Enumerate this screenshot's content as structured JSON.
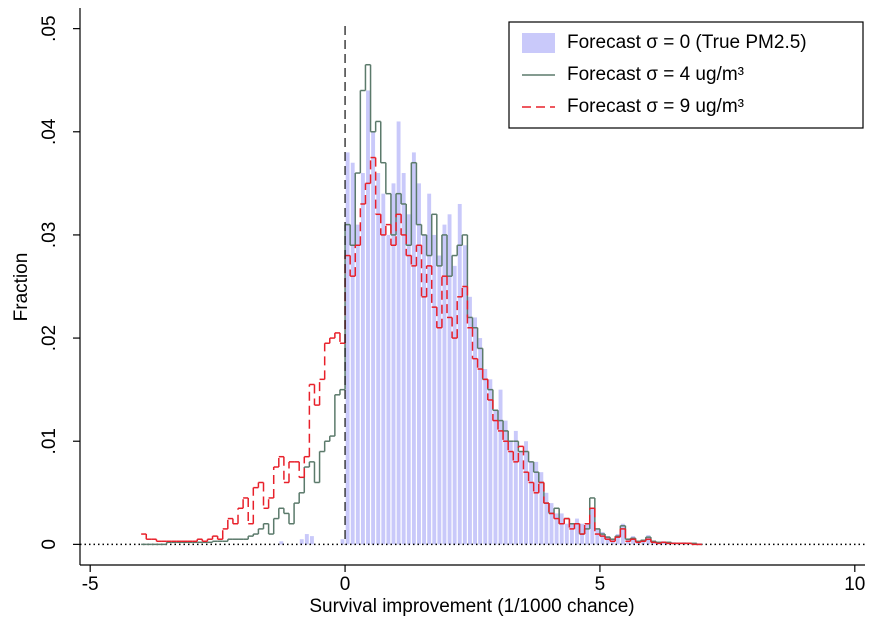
{
  "chart_data": {
    "type": "histogram",
    "x_label": "Survival improvement (1/1000 chance)",
    "y_label": "Fraction",
    "xlim": [
      -5.2,
      10.2
    ],
    "xticks": [
      -5,
      0,
      5,
      10
    ],
    "ylim": [
      -0.002,
      0.052
    ],
    "yticks": [
      0,
      {
        "value": 0.01,
        "label": ".01"
      },
      {
        "value": 0.02,
        "label": ".02"
      },
      {
        "value": 0.03,
        "label": ".03"
      },
      {
        "value": 0.04,
        "label": ".04"
      },
      {
        "value": 0.05,
        "label": ".05"
      }
    ],
    "vline": 0,
    "hline": 0,
    "legend": "top-right",
    "bins": [
      -4.0,
      -3.9,
      -3.8,
      -3.7,
      -3.6,
      -3.5,
      -3.4,
      -3.3,
      -3.2,
      -3.1,
      -3.0,
      -2.9,
      -2.8,
      -2.7,
      -2.6,
      -2.5,
      -2.4,
      -2.3,
      -2.2,
      -2.1,
      -2.0,
      -1.9,
      -1.8,
      -1.7,
      -1.6,
      -1.5,
      -1.4,
      -1.3,
      -1.2,
      -1.1,
      -1.0,
      -0.9,
      -0.8,
      -0.7,
      -0.6,
      -0.5,
      -0.4,
      -0.3,
      -0.2,
      -0.1,
      0.0,
      0.1,
      0.2,
      0.3,
      0.4,
      0.5,
      0.6,
      0.7,
      0.8,
      0.9,
      1.0,
      1.1,
      1.2,
      1.3,
      1.4,
      1.5,
      1.6,
      1.7,
      1.8,
      1.9,
      2.0,
      2.1,
      2.2,
      2.3,
      2.4,
      2.5,
      2.6,
      2.7,
      2.8,
      2.9,
      3.0,
      3.1,
      3.2,
      3.3,
      3.4,
      3.5,
      3.6,
      3.7,
      3.8,
      3.9,
      4.0,
      4.1,
      4.2,
      4.3,
      4.4,
      4.5,
      4.6,
      4.7,
      4.8,
      4.9,
      5.0,
      5.1,
      5.2,
      5.3,
      5.4,
      5.5,
      5.6,
      5.7,
      5.8,
      5.9,
      6.0,
      6.1,
      6.2,
      6.3,
      6.4,
      6.5,
      6.6,
      6.7,
      6.8,
      6.9,
      7.0
    ],
    "series": [
      {
        "name": "Forecast σ = 0 (True PM2.5)",
        "style": "bar",
        "color": "#c9c9fa",
        "values": [
          0,
          0,
          0,
          0,
          0,
          0,
          0,
          0,
          0,
          0,
          0,
          0,
          0,
          0,
          0,
          0,
          0,
          0,
          0,
          0,
          0,
          0,
          0,
          0,
          0,
          0,
          0,
          0.0003,
          0,
          0,
          0,
          0.0005,
          0.001,
          0.0008,
          0,
          0,
          0,
          0,
          0,
          0.0005,
          0.038,
          0.037,
          0.031,
          0.036,
          0.044,
          0.04,
          0.036,
          0.034,
          0.03,
          0.035,
          0.041,
          0.036,
          0.032,
          0.038,
          0.035,
          0.03,
          0.034,
          0.03,
          0.028,
          0.031,
          0.032,
          0.027,
          0.033,
          0.029,
          0.024,
          0.022,
          0.02,
          0.017,
          0.016,
          0.013,
          0.015,
          0.012,
          0.01,
          0.011,
          0.009,
          0.01,
          0.008,
          0.008,
          0.007,
          0.005,
          0.004,
          0.003,
          0.003,
          0.002,
          0.002,
          0.0025,
          0.002,
          0.002,
          0.0035,
          0.0015,
          0.0012,
          0.0008,
          0.0005,
          0.001,
          0.002,
          0.0005,
          0.0008,
          0.0003,
          0.0004,
          0.0009,
          0.0003,
          0.0002,
          0.0003,
          0.0002,
          0.0002,
          0.0001,
          0.0002,
          0.0001,
          0.0001,
          0.0001
        ]
      },
      {
        "name": "Forecast σ = 4 ug/m³",
        "style": "step",
        "color": "#5b7a6b",
        "values": [
          0,
          0,
          0,
          0,
          0,
          0.0002,
          0.0002,
          0.0002,
          0.0002,
          0.0002,
          0.0002,
          0.0002,
          0.0002,
          0.0002,
          0.0003,
          0.0003,
          0.0003,
          0.0005,
          0.0005,
          0.0005,
          0.0005,
          0.0008,
          0.001,
          0.0015,
          0.002,
          0.001,
          0.0025,
          0.0035,
          0.003,
          0.002,
          0.004,
          0.005,
          0.0075,
          0.008,
          0.006,
          0.009,
          0.01,
          0.0105,
          0.0145,
          0.015,
          0.031,
          0.029,
          0.036,
          0.044,
          0.0465,
          0.04,
          0.041,
          0.037,
          0.034,
          0.03,
          0.034,
          0.033,
          0.029,
          0.037,
          0.031,
          0.03,
          0.028,
          0.032,
          0.027,
          0.03,
          0.026,
          0.028,
          0.029,
          0.03,
          0.022,
          0.021,
          0.019,
          0.016,
          0.015,
          0.013,
          0.012,
          0.011,
          0.01,
          0.01,
          0.009,
          0.009,
          0.008,
          0.007,
          0.006,
          0.004,
          0.003,
          0.0035,
          0.002,
          0.0025,
          0.002,
          0.002,
          0.001,
          0.0015,
          0.0045,
          0.0015,
          0.001,
          0.0007,
          0.0005,
          0.0008,
          0.0018,
          0.0005,
          0.0006,
          0.0003,
          0.0004,
          0.0007,
          0.0003,
          0.0002,
          0.0002,
          0.0002,
          0.0001,
          0.0001,
          0.0001,
          0.0001,
          0.0001,
          0
        ]
      },
      {
        "name": "Forecast σ = 9 ug/m³",
        "style": "step",
        "dashed": true,
        "color": "#e8202a",
        "values": [
          0.001,
          0.0005,
          0.0005,
          0.0003,
          0.0003,
          0.0003,
          0.0003,
          0.0003,
          0.0003,
          0.0003,
          0.0003,
          0.0005,
          0.0003,
          0.0005,
          0.0008,
          0.0005,
          0.0015,
          0.0025,
          0.002,
          0.0035,
          0.0045,
          0.002,
          0.0055,
          0.006,
          0.0035,
          0.0045,
          0.0075,
          0.0085,
          0.006,
          0.008,
          0.008,
          0.0065,
          0.0085,
          0.0155,
          0.0135,
          0.016,
          0.0195,
          0.02,
          0.0205,
          0.0195,
          0.028,
          0.026,
          0.029,
          0.033,
          0.035,
          0.0375,
          0.032,
          0.03,
          0.031,
          0.029,
          0.032,
          0.03,
          0.028,
          0.027,
          0.029,
          0.024,
          0.027,
          0.023,
          0.021,
          0.026,
          0.022,
          0.02,
          0.024,
          0.025,
          0.021,
          0.018,
          0.017,
          0.016,
          0.014,
          0.012,
          0.011,
          0.01,
          0.009,
          0.008,
          0.0095,
          0.007,
          0.006,
          0.005,
          0.006,
          0.004,
          0.003,
          0.0025,
          0.002,
          0.0025,
          0.0015,
          0.002,
          0.001,
          0.002,
          0.0035,
          0.001,
          0.0008,
          0.0005,
          0.0003,
          0.0007,
          0.0015,
          0.0003,
          0.0005,
          0.0002,
          0.0003,
          0.0005,
          0.0002,
          0.0001,
          0.0002,
          0.0001,
          0.0001,
          0.0001,
          0.0001,
          0.0001,
          0,
          0
        ]
      }
    ]
  }
}
